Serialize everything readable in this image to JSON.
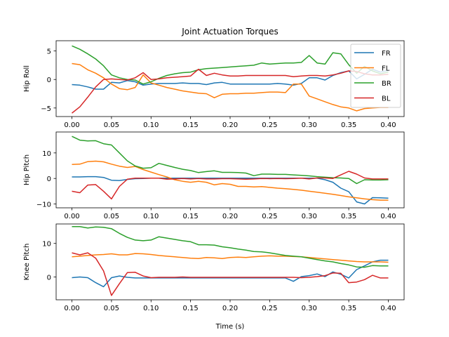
{
  "chart_data": {
    "type": "line",
    "title": "Joint Actuation Torques",
    "xlabel": "Time (s)",
    "colors": {
      "FR": "#1f77b4",
      "FL": "#ff7f0e",
      "BR": "#2ca02c",
      "BL": "#d62728"
    },
    "x": [
      0.0,
      0.01,
      0.02,
      0.03,
      0.04,
      0.05,
      0.06,
      0.07,
      0.08,
      0.09,
      0.1,
      0.11,
      0.12,
      0.13,
      0.14,
      0.15,
      0.16,
      0.17,
      0.18,
      0.19,
      0.2,
      0.21,
      0.22,
      0.23,
      0.24,
      0.25,
      0.26,
      0.27,
      0.28,
      0.29,
      0.3,
      0.31,
      0.32,
      0.33,
      0.34,
      0.35,
      0.36,
      0.37,
      0.38,
      0.39,
      0.4
    ],
    "xlim": [
      -0.02,
      0.42
    ],
    "xticks": [
      "0.00",
      "0.05",
      "0.10",
      "0.15",
      "0.20",
      "0.25",
      "0.30",
      "0.35",
      "0.40"
    ],
    "legend": {
      "entries": [
        "FR",
        "FL",
        "BR",
        "BL"
      ],
      "placement": "top-right",
      "subplot": 0
    },
    "subplots": [
      {
        "ylabel": "Hip Roll",
        "ylim": [
          -6.5,
          6.8
        ],
        "yticks": [
          "−5",
          "0",
          "5"
        ],
        "series": [
          {
            "name": "FR",
            "values": [
              -0.9,
              -1.0,
              -1.3,
              -1.7,
              -1.7,
              -0.5,
              -0.6,
              -0.2,
              -0.4,
              -1.0,
              -0.8,
              -0.7,
              -0.7,
              -0.7,
              -0.6,
              -0.7,
              -0.7,
              -0.9,
              -0.6,
              -0.5,
              -0.8,
              -0.8,
              -0.8,
              -0.8,
              -0.8,
              -0.8,
              -0.7,
              -0.8,
              -1.0,
              -0.7,
              0.3,
              0.3,
              -0.1,
              0.7,
              1.2,
              1.5,
              0.1,
              0.9,
              1.8,
              1.3,
              1.6
            ]
          },
          {
            "name": "FL",
            "values": [
              2.8,
              2.6,
              1.7,
              1.1,
              0.3,
              -0.8,
              -1.6,
              -1.8,
              -1.4,
              0.8,
              -0.6,
              -1.0,
              -1.4,
              -1.7,
              -2.0,
              -2.2,
              -2.4,
              -2.5,
              -3.2,
              -2.6,
              -2.5,
              -2.5,
              -2.4,
              -2.4,
              -2.3,
              -2.2,
              -2.2,
              -2.3,
              -0.8,
              -0.8,
              -2.9,
              -3.4,
              -3.9,
              -4.4,
              -4.8,
              -5.0,
              -5.5,
              -5.1,
              -5.0,
              -4.9,
              -4.9
            ]
          },
          {
            "name": "BR",
            "values": [
              5.9,
              5.3,
              4.5,
              3.6,
              2.4,
              0.8,
              0.3,
              0.0,
              -0.1,
              -0.8,
              -0.4,
              0.2,
              0.7,
              1.0,
              1.2,
              1.3,
              1.7,
              1.9,
              2.0,
              2.1,
              2.2,
              2.3,
              2.4,
              2.5,
              2.9,
              2.7,
              2.8,
              2.9,
              2.9,
              3.0,
              4.2,
              2.9,
              2.7,
              4.7,
              4.5,
              2.6,
              1.1,
              2.3,
              1.5,
              1.0,
              1.3
            ]
          },
          {
            "name": "BL",
            "values": [
              -5.9,
              -4.8,
              -3.1,
              -1.3,
              0.0,
              0.1,
              0.0,
              -0.1,
              0.3,
              1.2,
              0.0,
              0.1,
              0.3,
              0.4,
              0.5,
              0.6,
              1.8,
              0.7,
              1.1,
              0.8,
              0.6,
              0.6,
              0.7,
              0.7,
              0.7,
              0.7,
              0.7,
              0.7,
              0.5,
              0.6,
              0.7,
              0.7,
              0.6,
              0.8,
              1.1,
              1.5,
              1.4,
              1.0,
              0.8,
              0.8,
              0.9
            ]
          }
        ]
      },
      {
        "ylabel": "Hip Pitch",
        "ylim": [
          -11.5,
          18.2
        ],
        "yticks": [
          "−10",
          "0",
          "10"
        ],
        "series": [
          {
            "name": "FR",
            "values": [
              0.6,
              0.6,
              0.7,
              0.7,
              0.4,
              -0.7,
              -0.8,
              -0.4,
              -0.1,
              0.0,
              0.1,
              0.1,
              0.1,
              0.1,
              0.1,
              0.1,
              0.1,
              0.1,
              0.1,
              0.1,
              0.1,
              0.1,
              0.1,
              0.1,
              0.1,
              0.1,
              0.1,
              0.1,
              0.1,
              0.1,
              0.1,
              0.1,
              -0.5,
              -1.5,
              -3.8,
              -5.2,
              -9.2,
              -10.0,
              -7.5,
              -7.6,
              -7.7
            ]
          },
          {
            "name": "FL",
            "values": [
              5.5,
              5.6,
              6.6,
              6.8,
              6.5,
              5.6,
              4.8,
              4.3,
              4.7,
              3.5,
              2.5,
              1.5,
              0.6,
              -0.5,
              -1.1,
              -1.5,
              -1.1,
              -1.5,
              -2.5,
              -2.0,
              -2.3,
              -3.1,
              -3.1,
              -3.3,
              -3.2,
              -3.5,
              -3.8,
              -4.0,
              -4.3,
              -4.6,
              -5.0,
              -5.4,
              -5.8,
              -6.2,
              -6.7,
              -7.2,
              -7.6,
              -8.0,
              -8.3,
              -8.5,
              -8.5
            ]
          },
          {
            "name": "BR",
            "values": [
              16.5,
              15.0,
              14.7,
              14.8,
              13.6,
              13.1,
              10.0,
              6.9,
              4.9,
              4.0,
              4.2,
              5.9,
              5.1,
              4.3,
              3.6,
              3.1,
              2.3,
              2.7,
              3.0,
              2.4,
              2.4,
              2.3,
              2.1,
              1.1,
              1.7,
              1.7,
              1.6,
              1.6,
              1.4,
              1.2,
              1.0,
              0.7,
              0.5,
              0.3,
              0.2,
              0.0,
              -2.0,
              -0.5,
              -0.6,
              -0.6,
              -0.5
            ]
          },
          {
            "name": "BL",
            "values": [
              -5.0,
              -5.6,
              -2.6,
              -2.4,
              -5.0,
              -8.0,
              -3.1,
              -0.3,
              0.1,
              0.1,
              0.1,
              0.1,
              -0.3,
              -0.2,
              0.0,
              -0.2,
              0.0,
              -0.2,
              -0.2,
              -0.1,
              -0.1,
              -0.2,
              -0.3,
              -0.2,
              0.0,
              -0.1,
              0.0,
              -0.1,
              0.0,
              0.1,
              -0.2,
              0.2,
              0.2,
              0.0,
              1.4,
              2.8,
              1.7,
              0.2,
              -0.2,
              -0.2,
              -0.2
            ]
          }
        ]
      },
      {
        "ylabel": "Knee Pitch",
        "ylim": [
          -6.8,
          15.8
        ],
        "yticks": [
          "0",
          "10"
        ],
        "series": [
          {
            "name": "FR",
            "values": [
              -0.2,
              0.0,
              -0.2,
              -1.7,
              -2.9,
              -0.2,
              0.3,
              -0.1,
              -0.3,
              -0.3,
              -0.3,
              -0.3,
              -0.3,
              -0.3,
              -0.3,
              -0.3,
              -0.3,
              -0.3,
              -0.3,
              -0.3,
              -0.3,
              -0.3,
              -0.3,
              -0.3,
              -0.3,
              -0.3,
              -0.3,
              -0.3,
              -1.3,
              0.1,
              0.4,
              0.9,
              0.1,
              1.5,
              0.8,
              -0.3,
              2.2,
              3.3,
              4.5,
              5.0,
              5.0
            ]
          },
          {
            "name": "FL",
            "values": [
              6.0,
              6.2,
              6.4,
              6.6,
              6.7,
              6.9,
              6.6,
              6.6,
              7.0,
              6.9,
              6.7,
              6.4,
              6.2,
              6.0,
              5.8,
              5.6,
              5.5,
              5.8,
              5.7,
              5.5,
              5.8,
              5.9,
              5.8,
              6.0,
              6.2,
              6.3,
              6.2,
              6.2,
              6.1,
              6.0,
              5.8,
              5.6,
              5.4,
              5.2,
              5.0,
              4.8,
              4.6,
              4.5,
              4.5,
              4.5,
              4.4
            ]
          },
          {
            "name": "BR",
            "values": [
              15.0,
              15.0,
              14.6,
              14.9,
              14.8,
              14.4,
              13.0,
              11.8,
              11.0,
              10.8,
              11.0,
              12.0,
              11.6,
              11.2,
              10.8,
              10.5,
              9.6,
              9.6,
              9.5,
              9.0,
              8.7,
              8.3,
              8.0,
              7.6,
              7.5,
              7.2,
              6.8,
              6.4,
              6.2,
              6.0,
              5.6,
              5.2,
              4.8,
              4.5,
              4.0,
              3.6,
              3.0,
              2.9,
              3.4,
              3.3,
              3.3
            ]
          },
          {
            "name": "BL",
            "values": [
              7.2,
              6.6,
              7.2,
              5.6,
              1.8,
              -5.5,
              -2.0,
              1.3,
              1.4,
              0.3,
              -0.2,
              -0.1,
              -0.1,
              -0.1,
              0.0,
              -0.1,
              -0.1,
              -0.1,
              -0.1,
              -0.1,
              -0.1,
              -0.1,
              -0.1,
              -0.1,
              -0.1,
              -0.1,
              -0.1,
              -0.1,
              -0.1,
              -0.2,
              -0.1,
              0.1,
              0.4,
              1.2,
              1.1,
              -1.7,
              -1.5,
              -0.8,
              0.5,
              -0.3,
              -0.3
            ]
          }
        ]
      }
    ]
  }
}
